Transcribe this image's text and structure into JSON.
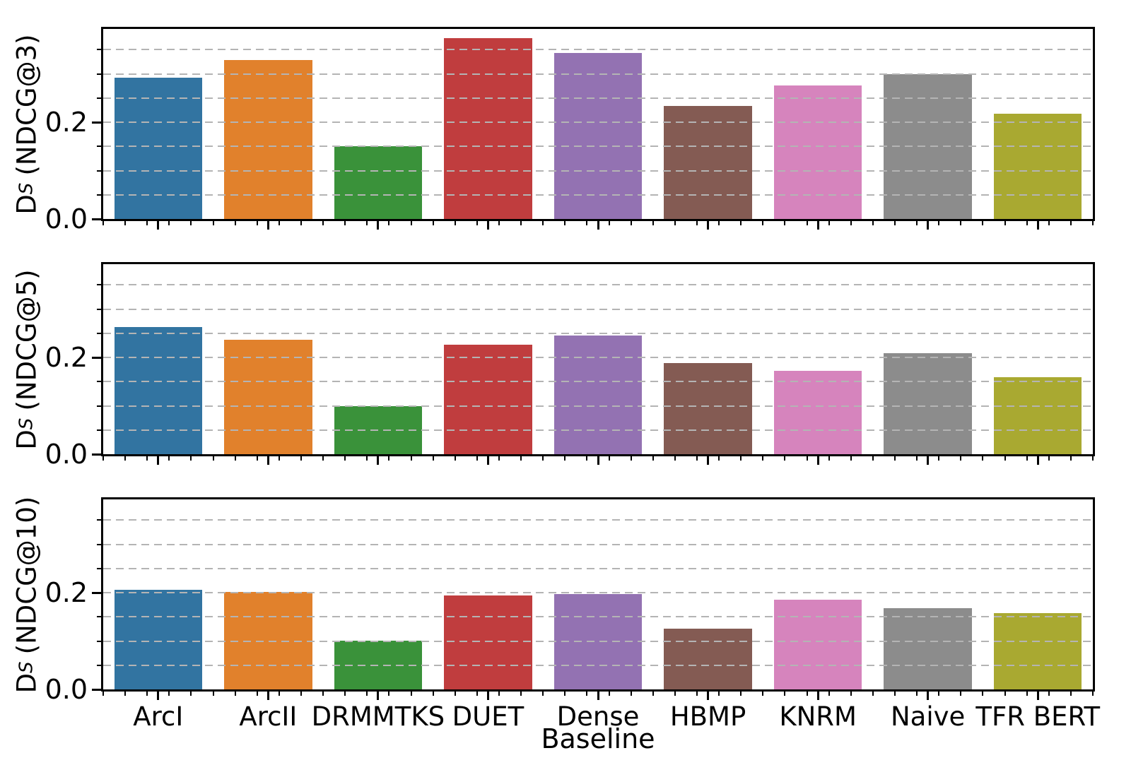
{
  "figure": {
    "xlabel": "Baseline",
    "background": "#ffffff",
    "axis_color": "#000000",
    "grid_color": "#b4b4b4"
  },
  "categories": [
    "ArcI",
    "ArcII",
    "DRMMTKS",
    "DUET",
    "Dense",
    "HBMP",
    "KNRM",
    "Naive",
    "TFR BERT"
  ],
  "bar_colors": [
    "#3274A1",
    "#E1812C",
    "#3A923A",
    "#C03D3E",
    "#9372B2",
    "#845B53",
    "#D684BD",
    "#8C8C8C",
    "#A9A931"
  ],
  "chart_data": [
    {
      "type": "bar",
      "metric": "NDCG@3",
      "ylabel": "D_S (NDCG@3)",
      "ylabel_parts": {
        "main": "D",
        "sub": "S",
        "metric": "(NDCG@3)"
      },
      "xlabel": "Baseline",
      "categories": [
        "ArcI",
        "ArcII",
        "DRMMTKS",
        "DUET",
        "Dense",
        "HBMP",
        "KNRM",
        "Naive",
        "TFR BERT"
      ],
      "values": [
        0.292,
        0.329,
        0.151,
        0.374,
        0.343,
        0.234,
        0.276,
        0.3,
        0.217
      ],
      "ylim": [
        0,
        0.393
      ],
      "ytick_values": [
        0.0,
        0.2
      ],
      "ytick_labels": [
        "0.0",
        "0.2"
      ],
      "grid": true,
      "grid_style": "dashed",
      "grid_interval": 0.05,
      "grid_max": 0.35
    },
    {
      "type": "bar",
      "metric": "NDCG@5",
      "ylabel": "D_S (NDCG@5)",
      "ylabel_parts": {
        "main": "D",
        "sub": "S",
        "metric": "(NDCG@5)"
      },
      "xlabel": "Baseline",
      "categories": [
        "ArcI",
        "ArcII",
        "DRMMTKS",
        "DUET",
        "Dense",
        "HBMP",
        "KNRM",
        "Naive",
        "TFR BERT"
      ],
      "values": [
        0.263,
        0.236,
        0.1,
        0.227,
        0.246,
        0.189,
        0.172,
        0.209,
        0.159
      ],
      "ylim": [
        0,
        0.393
      ],
      "ytick_values": [
        0.0,
        0.2
      ],
      "ytick_labels": [
        "0.0",
        "0.2"
      ],
      "grid": true,
      "grid_style": "dashed",
      "grid_interval": 0.05,
      "grid_max": 0.35
    },
    {
      "type": "bar",
      "metric": "NDCG@10",
      "ylabel": "D_S (NDCG@10)",
      "ylabel_parts": {
        "main": "D",
        "sub": "S",
        "metric": "(NDCG@10)"
      },
      "xlabel": "Baseline",
      "categories": [
        "ArcI",
        "ArcII",
        "DRMMTKS",
        "DUET",
        "Dense",
        "HBMP",
        "KNRM",
        "Naive",
        "TFR BERT"
      ],
      "values": [
        0.206,
        0.202,
        0.101,
        0.194,
        0.197,
        0.125,
        0.186,
        0.168,
        0.158
      ],
      "ylim": [
        0,
        0.393
      ],
      "ytick_values": [
        0.0,
        0.2
      ],
      "ytick_labels": [
        "0.0",
        "0.2"
      ],
      "grid": true,
      "grid_style": "dashed",
      "grid_interval": 0.05,
      "grid_max": 0.35
    }
  ]
}
